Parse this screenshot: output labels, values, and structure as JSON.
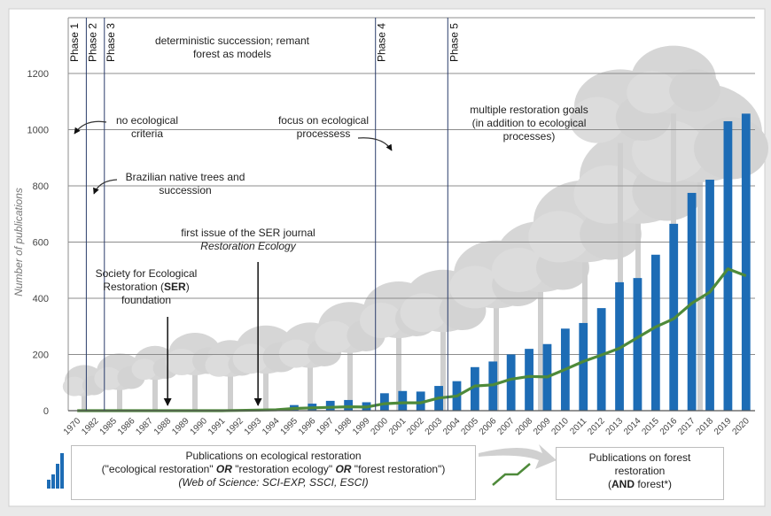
{
  "chart_data": {
    "type": "bar+line",
    "ylabel": "Number of publications",
    "ylim": [
      0,
      1200
    ],
    "yticks": [
      0,
      200,
      400,
      600,
      800,
      1000,
      1200
    ],
    "grid": true,
    "categories": [
      "1970",
      "1982",
      "1985",
      "1986",
      "1987",
      "1988",
      "1989",
      "1990",
      "1991",
      "1992",
      "1993",
      "1994",
      "1995",
      "1996",
      "1997",
      "1998",
      "1999",
      "2000",
      "2001",
      "2002",
      "2003",
      "2004",
      "2005",
      "2006",
      "2007",
      "2008",
      "2009",
      "2010",
      "2011",
      "2012",
      "2013",
      "2014",
      "2015",
      "2016",
      "2017",
      "2018",
      "2019",
      "2020"
    ],
    "series": [
      {
        "name": "Publications on ecological restoration",
        "type": "bar",
        "color": "#1d6cb5",
        "values": [
          0,
          0,
          0,
          0,
          0,
          0,
          0,
          0,
          1,
          2,
          4,
          6,
          20,
          25,
          35,
          38,
          30,
          62,
          70,
          68,
          88,
          105,
          155,
          175,
          200,
          220,
          237,
          292,
          312,
          365,
          457,
          472,
          555,
          665,
          775,
          822,
          1030,
          1057
        ]
      },
      {
        "name": "Publications on forest restoration",
        "type": "line",
        "color": "#4e8a3a",
        "values": [
          0,
          0,
          0,
          0,
          0,
          0,
          0,
          0,
          0,
          1,
          2,
          3,
          8,
          10,
          12,
          14,
          13,
          25,
          28,
          28,
          45,
          52,
          88,
          92,
          112,
          122,
          120,
          147,
          175,
          198,
          222,
          260,
          298,
          327,
          382,
          422,
          505,
          480
        ]
      }
    ],
    "phases": [
      {
        "label": "Phase 1",
        "start_index": 0
      },
      {
        "label": "Phase 2",
        "start_index": 1
      },
      {
        "label": "Phase 3",
        "start_index": 2
      },
      {
        "label": "Phase 4",
        "start_index": 17
      },
      {
        "label": "Phase 5",
        "start_index": 21
      }
    ],
    "annotations": {
      "phase3_text": [
        "deterministic succession; remant",
        "forest as models"
      ],
      "no_criteria": [
        "no ecological",
        "criteria"
      ],
      "brazilian": [
        "Brazilian native trees and",
        "succession"
      ],
      "focus": [
        "focus on ecological",
        "processess"
      ],
      "multiple": [
        "multiple restoration goals",
        "(in addition to ecological",
        "processes)"
      ],
      "ser_journal": [
        "first issue of the SER journal",
        "Restoration Ecology"
      ],
      "ser_found_line1": "Society for Ecological",
      "ser_found_line2_pre": "Restoration (",
      "ser_found_line2_bold": "SER",
      "ser_found_line2_post": ")",
      "ser_found_line3": "foundation"
    }
  },
  "legend": {
    "bars_line1": "Publications on ecological restoration",
    "bars_line2_a": "(\"ecological restoration\" ",
    "bars_or1": "OR",
    "bars_line2_b": " \"restoration ecology\" ",
    "bars_or2": "OR",
    "bars_line2_c": " \"forest restoration\")",
    "bars_line3": "(Web of Science: SCI-EXP, SSCI, ESCI)",
    "line_line1": "Publications on forest",
    "line_line2": "restoration",
    "line_line3_pre": "(",
    "line_line3_bold": "AND",
    "line_line3_post": " forest*)"
  }
}
